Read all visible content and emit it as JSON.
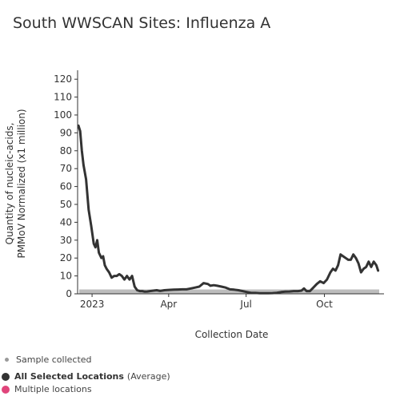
{
  "title": "South WWSCAN Sites: Influenza A",
  "legend": {
    "sample_collected": "Sample collected",
    "all_locations_bold": "All Selected Locations",
    "all_locations_rest": "(Average)",
    "multiple_locations": "Multiple locations"
  },
  "colors": {
    "line": "#333333",
    "sample_dot": "#9a9a9a",
    "sample_band": "#bdbdbd",
    "multiple_dot": "#e0457b",
    "axis": "#333333"
  },
  "chart_data": {
    "type": "line",
    "title": "South WWSCAN Sites: Influenza A",
    "xlabel": "Collection Date",
    "ylabel": "Quantity of nucleic-acids, PMMoV Normalized (x1 million)",
    "ylabel_lines": [
      "Quantity of nucleic-acids,",
      "PMMoV Normalized (x1 million)"
    ],
    "ylim": [
      0,
      125
    ],
    "yticks": [
      0,
      10,
      20,
      30,
      40,
      50,
      60,
      70,
      80,
      90,
      100,
      110,
      120
    ],
    "xlim": [
      "2022-12-15",
      "2023-12-10"
    ],
    "xticks": [
      {
        "date": "2023-01-01",
        "label": "2023"
      },
      {
        "date": "2023-04-01",
        "label": "Apr"
      },
      {
        "date": "2023-07-01",
        "label": "Jul"
      },
      {
        "date": "2023-10-01",
        "label": "Oct"
      }
    ],
    "grid": false,
    "series": [
      {
        "name": "All Selected Locations",
        "x": [
          "2022-12-16",
          "2022-12-18",
          "2022-12-20",
          "2022-12-22",
          "2022-12-25",
          "2022-12-28",
          "2022-12-31",
          "2023-01-03",
          "2023-01-05",
          "2023-01-07",
          "2023-01-09",
          "2023-01-12",
          "2023-01-14",
          "2023-01-16",
          "2023-01-18",
          "2023-01-21",
          "2023-01-24",
          "2023-01-27",
          "2023-01-30",
          "2023-02-02",
          "2023-02-05",
          "2023-02-08",
          "2023-02-11",
          "2023-02-14",
          "2023-02-17",
          "2023-02-20",
          "2023-02-23",
          "2023-02-26",
          "2023-03-01",
          "2023-03-04",
          "2023-03-07",
          "2023-03-10",
          "2023-03-14",
          "2023-03-18",
          "2023-03-22",
          "2023-03-27",
          "2023-04-01",
          "2023-04-07",
          "2023-04-12",
          "2023-04-17",
          "2023-04-22",
          "2023-04-27",
          "2023-05-02",
          "2023-05-07",
          "2023-05-12",
          "2023-05-17",
          "2023-05-20",
          "2023-05-24",
          "2023-05-28",
          "2023-06-02",
          "2023-06-07",
          "2023-06-12",
          "2023-06-17",
          "2023-06-22",
          "2023-06-27",
          "2023-07-02",
          "2023-07-07",
          "2023-07-12",
          "2023-07-17",
          "2023-07-22",
          "2023-07-27",
          "2023-08-01",
          "2023-08-06",
          "2023-08-11",
          "2023-08-16",
          "2023-08-21",
          "2023-08-26",
          "2023-08-31",
          "2023-09-04",
          "2023-09-07",
          "2023-09-10",
          "2023-09-14",
          "2023-09-18",
          "2023-09-22",
          "2023-09-26",
          "2023-09-30",
          "2023-10-04",
          "2023-10-08",
          "2023-10-11",
          "2023-10-14",
          "2023-10-17",
          "2023-10-20",
          "2023-10-23",
          "2023-10-26",
          "2023-10-29",
          "2023-11-01",
          "2023-11-04",
          "2023-11-07",
          "2023-11-10",
          "2023-11-13",
          "2023-11-16",
          "2023-11-19",
          "2023-11-22",
          "2023-11-25",
          "2023-11-28",
          "2023-12-01",
          "2023-12-03"
        ],
        "values": [
          94,
          91,
          80,
          72,
          64,
          47,
          38,
          28,
          26,
          30,
          23,
          20,
          21,
          16,
          14,
          12,
          9,
          10,
          10,
          11,
          10,
          8,
          10,
          8,
          10,
          4,
          2,
          1.5,
          1.5,
          1.2,
          1.3,
          1.5,
          1.8,
          2,
          1.6,
          2,
          2.2,
          2.3,
          2.4,
          2.5,
          2.5,
          3,
          3.5,
          4,
          6,
          5.5,
          4.5,
          4.8,
          4.5,
          4,
          3.5,
          2.5,
          2.3,
          2,
          1.5,
          1,
          0.5,
          0.5,
          0.3,
          0.3,
          0.3,
          0.4,
          0.6,
          1,
          1.2,
          1.3,
          1.5,
          1.5,
          1.8,
          3,
          1.5,
          1.5,
          3.5,
          5.5,
          7,
          6,
          8,
          12,
          14,
          13,
          16,
          22,
          21,
          20,
          19,
          19,
          22,
          20,
          17,
          12,
          14,
          15,
          18,
          15,
          18,
          16,
          13
        ]
      }
    ],
    "sample_collected_band": [
      0,
      2
    ]
  }
}
